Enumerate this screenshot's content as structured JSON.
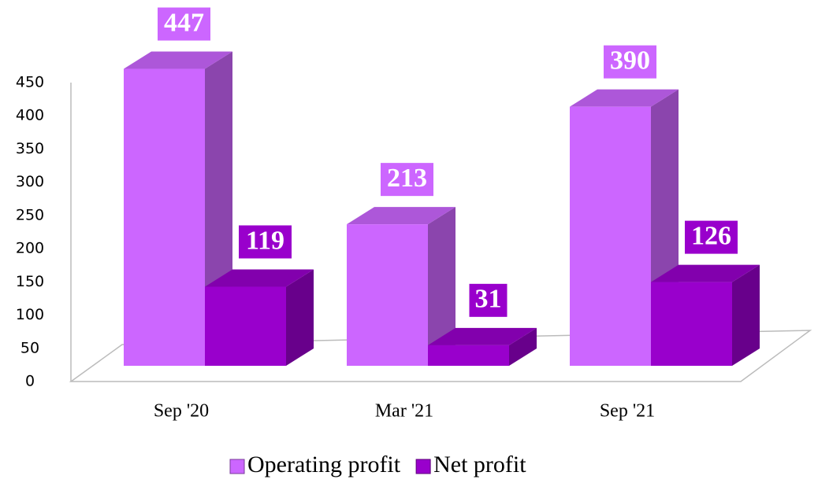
{
  "chart_data": {
    "type": "bar3d",
    "categories": [
      "Sep '20",
      "Mar '21",
      "Sep '21"
    ],
    "series": [
      {
        "name": "Operating profit",
        "color": "#cc66ff",
        "values": [
          447,
          213,
          390
        ]
      },
      {
        "name": "Net profit",
        "color": "#9900cc",
        "values": [
          119,
          31,
          126
        ]
      }
    ],
    "ylim": [
      0,
      450
    ],
    "yticks": [
      0,
      50,
      100,
      150,
      200,
      250,
      300,
      350,
      400,
      450
    ],
    "legend": "bottom"
  }
}
